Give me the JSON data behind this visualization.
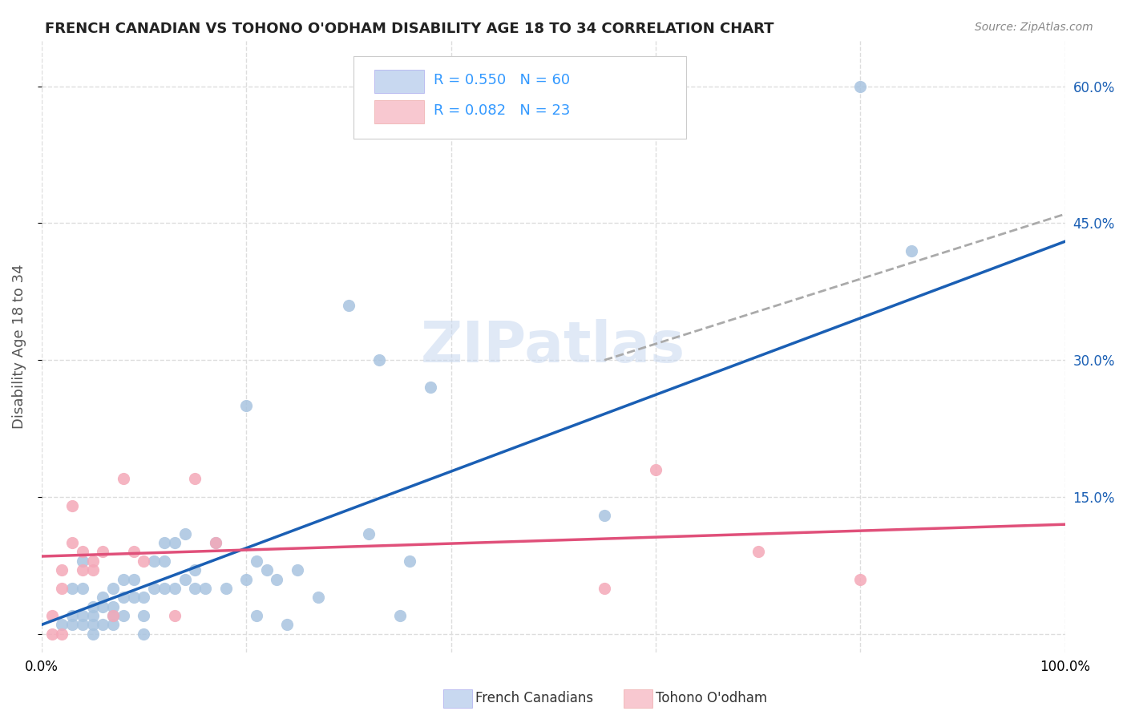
{
  "title": "FRENCH CANADIAN VS TOHONO O'ODHAM DISABILITY AGE 18 TO 34 CORRELATION CHART",
  "source": "Source: ZipAtlas.com",
  "ylabel": "Disability Age 18 to 34",
  "x_min": 0.0,
  "x_max": 1.0,
  "y_min": -0.02,
  "y_max": 0.65,
  "x_ticks": [
    0.0,
    0.2,
    0.4,
    0.6,
    0.8,
    1.0
  ],
  "x_tick_labels": [
    "0.0%",
    "",
    "",
    "",
    "",
    "100.0%"
  ],
  "y_ticks": [
    0.0,
    0.15,
    0.3,
    0.45,
    0.6
  ],
  "y_tick_labels_right": [
    "",
    "15.0%",
    "30.0%",
    "45.0%",
    "60.0%"
  ],
  "blue_R": 0.55,
  "blue_N": 60,
  "pink_R": 0.082,
  "pink_N": 23,
  "blue_color": "#a8c4e0",
  "pink_color": "#f4a8b8",
  "blue_line_color": "#1a5fb4",
  "pink_line_color": "#e0507a",
  "dashed_line_color": "#aaaaaa",
  "legend_text_color": "#3399ff",
  "watermark": "ZIPatlas",
  "blue_scatter_x": [
    0.02,
    0.03,
    0.03,
    0.03,
    0.04,
    0.04,
    0.04,
    0.04,
    0.05,
    0.05,
    0.05,
    0.05,
    0.06,
    0.06,
    0.06,
    0.07,
    0.07,
    0.07,
    0.07,
    0.08,
    0.08,
    0.08,
    0.09,
    0.09,
    0.1,
    0.1,
    0.1,
    0.11,
    0.11,
    0.12,
    0.12,
    0.12,
    0.13,
    0.13,
    0.14,
    0.14,
    0.15,
    0.15,
    0.16,
    0.17,
    0.18,
    0.2,
    0.2,
    0.21,
    0.21,
    0.22,
    0.23,
    0.24,
    0.25,
    0.27,
    0.3,
    0.32,
    0.33,
    0.35,
    0.36,
    0.38,
    0.55,
    0.6,
    0.8,
    0.85
  ],
  "blue_scatter_y": [
    0.01,
    0.01,
    0.02,
    0.05,
    0.01,
    0.02,
    0.05,
    0.08,
    0.0,
    0.01,
    0.02,
    0.03,
    0.01,
    0.03,
    0.04,
    0.01,
    0.02,
    0.03,
    0.05,
    0.02,
    0.04,
    0.06,
    0.04,
    0.06,
    0.0,
    0.02,
    0.04,
    0.05,
    0.08,
    0.05,
    0.08,
    0.1,
    0.05,
    0.1,
    0.06,
    0.11,
    0.05,
    0.07,
    0.05,
    0.1,
    0.05,
    0.06,
    0.25,
    0.08,
    0.02,
    0.07,
    0.06,
    0.01,
    0.07,
    0.04,
    0.36,
    0.11,
    0.3,
    0.02,
    0.08,
    0.27,
    0.13,
    0.6,
    0.6,
    0.42
  ],
  "pink_scatter_x": [
    0.01,
    0.01,
    0.02,
    0.02,
    0.02,
    0.03,
    0.03,
    0.04,
    0.04,
    0.05,
    0.05,
    0.06,
    0.07,
    0.08,
    0.09,
    0.1,
    0.13,
    0.15,
    0.17,
    0.55,
    0.6,
    0.7,
    0.8
  ],
  "pink_scatter_y": [
    0.0,
    0.02,
    0.0,
    0.05,
    0.07,
    0.1,
    0.14,
    0.07,
    0.09,
    0.07,
    0.08,
    0.09,
    0.02,
    0.17,
    0.09,
    0.08,
    0.02,
    0.17,
    0.1,
    0.05,
    0.18,
    0.09,
    0.06
  ],
  "blue_line_x0": 0.0,
  "blue_line_y0": 0.01,
  "blue_line_x1": 1.0,
  "blue_line_y1": 0.43,
  "pink_line_x0": 0.0,
  "pink_line_y0": 0.085,
  "pink_line_x1": 1.0,
  "pink_line_y1": 0.12,
  "dashed_line_x0": 0.55,
  "dashed_line_y0": 0.3,
  "dashed_line_x1": 1.0,
  "dashed_line_y1": 0.46,
  "grid_color": "#dddddd",
  "grid_style": "--",
  "background_color": "#ffffff",
  "legend_box_color_blue": "#c8d8f0",
  "legend_box_color_pink": "#f8c8d0",
  "footer_legend_blue": "French Canadians",
  "footer_legend_pink": "Tohono O'odham"
}
